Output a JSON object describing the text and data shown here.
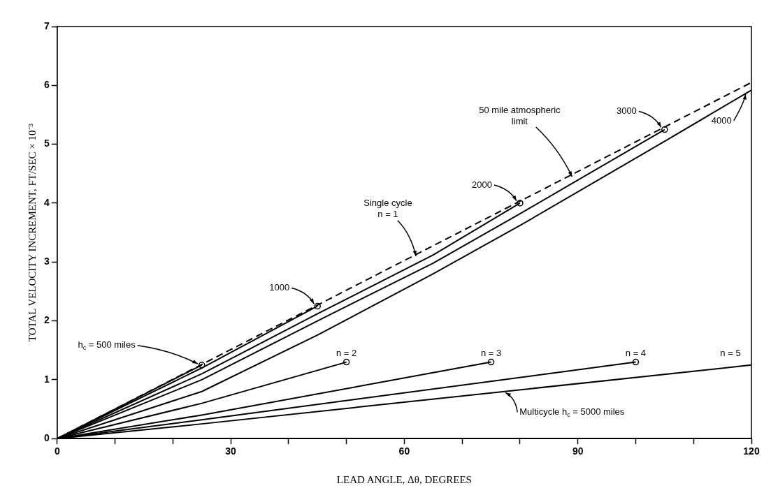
{
  "chart_data": {
    "type": "line",
    "xlabel": "LEAD ANGLE, Δθ, DEGREES",
    "ylabel": "TOTAL VELOCITY INCREMENT, FT/SEC × 10⁻³",
    "xlim": [
      0,
      120
    ],
    "ylim": [
      0,
      7
    ],
    "xticks": [
      0,
      {
        "value": 10,
        "label": null
      },
      {
        "value": 20,
        "label": null
      },
      30,
      {
        "value": 40,
        "label": null
      },
      {
        "value": 50,
        "label": null
      },
      60,
      {
        "value": 70,
        "label": null
      },
      {
        "value": 80,
        "label": null
      },
      90,
      {
        "value": 100,
        "label": null
      },
      {
        "value": 110,
        "label": null
      },
      120
    ],
    "yticks": [
      0,
      1,
      2,
      3,
      4,
      5,
      6,
      7
    ],
    "grid": false,
    "legend": false,
    "marker": "none",
    "series": [
      {
        "line_style": "dashed",
        "color": "#000000",
        "x": [
          0,
          120
        ],
        "values": [
          0,
          6.05
        ]
      },
      {
        "color": "#000000",
        "x": [
          0,
          25
        ],
        "values": [
          0,
          1.25
        ]
      },
      {
        "color": "#000000",
        "x": [
          0,
          25,
          45
        ],
        "values": [
          0,
          1.2,
          2.25
        ]
      },
      {
        "color": "#000000",
        "x": [
          0,
          25,
          45,
          65,
          80
        ],
        "values": [
          0,
          1.1,
          2.12,
          3.12,
          4.0
        ]
      },
      {
        "color": "#000000",
        "x": [
          0,
          25,
          45,
          65,
          80,
          105
        ],
        "values": [
          0,
          1.0,
          2.0,
          2.98,
          3.82,
          5.25
        ]
      },
      {
        "color": "#000000",
        "x": [
          0,
          25,
          45,
          65,
          80,
          105,
          120
        ],
        "values": [
          0,
          0.8,
          1.76,
          2.8,
          3.62,
          5.05,
          5.92
        ]
      },
      {
        "color": "#000000",
        "x": [
          0,
          25,
          50
        ],
        "values": [
          0,
          0.6,
          1.3
        ]
      },
      {
        "color": "#000000",
        "x": [
          0,
          25,
          75
        ],
        "values": [
          0,
          0.4,
          1.3
        ]
      },
      {
        "color": "#000000",
        "x": [
          0,
          25,
          100
        ],
        "values": [
          0,
          0.32,
          1.3
        ]
      },
      {
        "color": "#000000",
        "x": [
          0,
          25,
          120
        ],
        "values": [
          0,
          0.25,
          1.25
        ]
      },
      {
        "type": "scatter",
        "marker": "circle",
        "color": "#000000",
        "x": [
          25,
          45,
          80,
          105,
          50,
          75,
          100
        ],
        "values": [
          1.25,
          2.25,
          4.0,
          5.25,
          1.3,
          1.3,
          1.3
        ]
      }
    ],
    "annotations": [
      {
        "text": "h$_{c}$ = 500 miles",
        "x": 25,
        "y": 1.25
      },
      {
        "text": "1000",
        "x": 45,
        "y": 2.25
      },
      {
        "text": "2000",
        "x": 80,
        "y": 4.0
      },
      {
        "text": "3000",
        "x": 105,
        "y": 5.25
      },
      {
        "text": "4000",
        "x": 119,
        "y": 5.85
      },
      {
        "text": "Single cycle\nn = 1",
        "x": 62,
        "y": 3.1
      },
      {
        "text": "50 mile atmospheric\nlimit",
        "x": 89,
        "y": 4.45
      },
      {
        "text": "n = 2",
        "x": 50,
        "y": 1.3
      },
      {
        "text": "n = 3",
        "x": 75,
        "y": 1.3
      },
      {
        "text": "n = 4",
        "x": 100,
        "y": 1.3
      },
      {
        "text": "n = 5",
        "x": 120,
        "y": 1.25
      },
      {
        "text": "Multicycle h$_{c}$ = 5000 miles",
        "x": 77.5,
        "y": 0.78
      }
    ]
  }
}
